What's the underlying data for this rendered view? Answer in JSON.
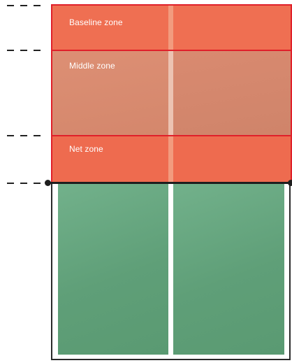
{
  "zones": {
    "baseline": {
      "label": "Baseline zone"
    },
    "middle": {
      "label": "Middle zone"
    },
    "net": {
      "label": "Net zone"
    }
  },
  "colors": {
    "zone_red": "#ef6f52",
    "zone_middle": "#d98a70",
    "zone_border": "#e0202a",
    "court_green": "#66a67e",
    "court_line": "#ffffff",
    "net": "#1e1e1e"
  }
}
